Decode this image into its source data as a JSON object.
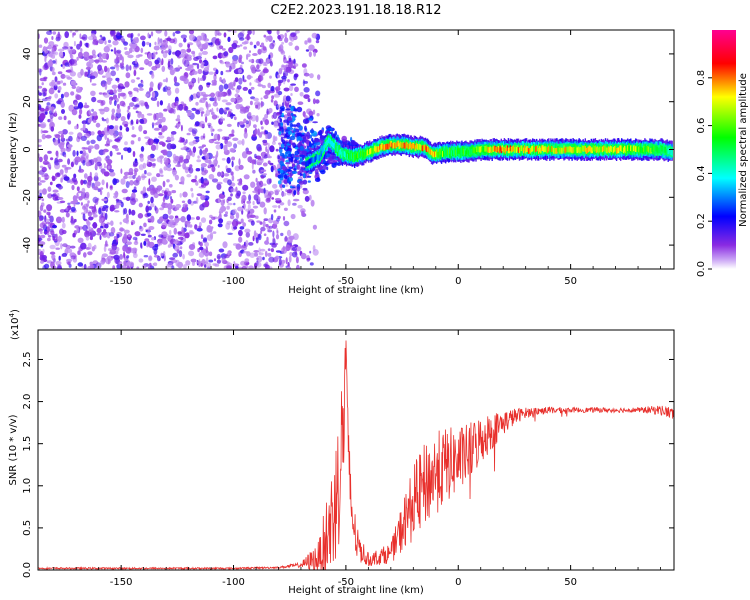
{
  "title": "C2E2.2023.191.18.18.R12",
  "colors": {
    "snr_line": "#e8302c",
    "frame": "#000000",
    "noise_purple": "#7a2bf0",
    "colorbar": [
      "#ffffff",
      "#8a2be2",
      "#0000ff",
      "#00ffff",
      "#00ff00",
      "#ffff00",
      "#ff0000",
      "#ff00aa"
    ]
  },
  "chart_data": [
    {
      "type": "heatmap",
      "name": "spectrogram",
      "xlabel": "Height of straight line (km)",
      "ylabel": "Frequency (Hz)",
      "xlim": [
        -187,
        96
      ],
      "ylim": [
        -50,
        50
      ],
      "xticks": [
        -150,
        -100,
        -50,
        0,
        50
      ],
      "xtick_labels": [
        "-150",
        "-100",
        "-50",
        "0",
        "50"
      ],
      "yticks": [
        -40,
        -20,
        0,
        20,
        40
      ],
      "ytick_labels": [
        "-40",
        "-20",
        "0",
        "20",
        "40"
      ],
      "noise_region_x": [
        -187,
        -72
      ],
      "transition_region_x": [
        -80,
        -45
      ],
      "signal_track": [
        {
          "x": -68,
          "freq": -6,
          "amp": 0.25
        },
        {
          "x": -62,
          "freq": -3,
          "amp": 0.35
        },
        {
          "x": -58,
          "freq": 4,
          "amp": 0.45
        },
        {
          "x": -52,
          "freq": -2,
          "amp": 0.5
        },
        {
          "x": -46,
          "freq": -3,
          "amp": 0.6
        },
        {
          "x": -40,
          "freq": -1,
          "amp": 0.7
        },
        {
          "x": -35,
          "freq": 1,
          "amp": 0.8
        },
        {
          "x": -30,
          "freq": 2,
          "amp": 0.85
        },
        {
          "x": -25,
          "freq": 2,
          "amp": 0.85
        },
        {
          "x": -20,
          "freq": 1,
          "amp": 0.8
        },
        {
          "x": -15,
          "freq": 1,
          "amp": 0.85
        },
        {
          "x": -12,
          "freq": -2,
          "amp": 0.8
        },
        {
          "x": -5,
          "freq": -1,
          "amp": 0.6
        },
        {
          "x": 0,
          "freq": -1,
          "amp": 0.6
        },
        {
          "x": 5,
          "freq": -1,
          "amp": 0.6
        },
        {
          "x": 10,
          "freq": 0,
          "amp": 0.7
        },
        {
          "x": 15,
          "freq": 0,
          "amp": 0.8
        },
        {
          "x": 20,
          "freq": 0,
          "amp": 0.85
        },
        {
          "x": 30,
          "freq": 0,
          "amp": 0.8
        },
        {
          "x": 40,
          "freq": 0,
          "amp": 0.75
        },
        {
          "x": 50,
          "freq": 0,
          "amp": 0.75
        },
        {
          "x": 60,
          "freq": 0,
          "amp": 0.75
        },
        {
          "x": 70,
          "freq": 0,
          "amp": 0.75
        },
        {
          "x": 80,
          "freq": 0,
          "amp": 0.7
        },
        {
          "x": 90,
          "freq": 0,
          "amp": 0.6
        },
        {
          "x": 95,
          "freq": -1,
          "amp": 0.45
        }
      ]
    },
    {
      "type": "colorbar",
      "name": "amplitude-scale",
      "label": "Normalized spectral amplitude",
      "ylim": [
        0,
        1
      ],
      "ticks": [
        0.0,
        0.2,
        0.4,
        0.6,
        0.8
      ],
      "tick_labels": [
        "0.0",
        "0.2",
        "0.4",
        "0.6",
        "0.8"
      ]
    },
    {
      "type": "line",
      "name": "snr",
      "xlabel": "Height of straight line (km)",
      "ylabel": "SNR (10 * v/v)",
      "scale_label": "(x10",
      "scale_exponent": "4",
      "scale_close": ")",
      "xlim": [
        -187,
        96
      ],
      "ylim": [
        0,
        2.85
      ],
      "xticks": [
        -150,
        -100,
        -50,
        0,
        50
      ],
      "xtick_labels": [
        "-150",
        "-100",
        "-50",
        "0",
        "50"
      ],
      "yticks": [
        0.0,
        0.5,
        1.0,
        1.5,
        2.0,
        2.5
      ],
      "ytick_labels": [
        "0.0",
        "0.5",
        "1.0",
        "1.5",
        "2.0",
        "2.5"
      ],
      "envelope": {
        "x": [
          -187,
          -100,
          -80,
          -70,
          -62,
          -57,
          -54,
          -52,
          -50.5,
          -50,
          -49,
          -47,
          -45,
          -40,
          -30,
          -25,
          -20,
          -15,
          -10,
          -5,
          0,
          5,
          10,
          15,
          20,
          25,
          30,
          40,
          50,
          60,
          70,
          80,
          90,
          96
        ],
        "y": [
          0.02,
          0.02,
          0.03,
          0.06,
          0.15,
          0.5,
          0.9,
          1.4,
          2.0,
          2.8,
          1.3,
          0.6,
          0.3,
          0.12,
          0.2,
          0.5,
          0.8,
          1.0,
          1.15,
          1.25,
          1.3,
          1.4,
          1.55,
          1.65,
          1.75,
          1.82,
          1.87,
          1.9,
          1.9,
          1.9,
          1.9,
          1.9,
          1.9,
          1.85
        ],
        "noise": [
          0.01,
          0.01,
          0.01,
          0.03,
          0.2,
          0.6,
          0.8,
          0.9,
          0.8,
          0.2,
          0.5,
          0.35,
          0.2,
          0.08,
          0.12,
          0.3,
          0.45,
          0.5,
          0.5,
          0.45,
          0.4,
          0.35,
          0.3,
          0.22,
          0.15,
          0.1,
          0.06,
          0.04,
          0.03,
          0.03,
          0.03,
          0.03,
          0.06,
          0.08
        ]
      }
    }
  ]
}
